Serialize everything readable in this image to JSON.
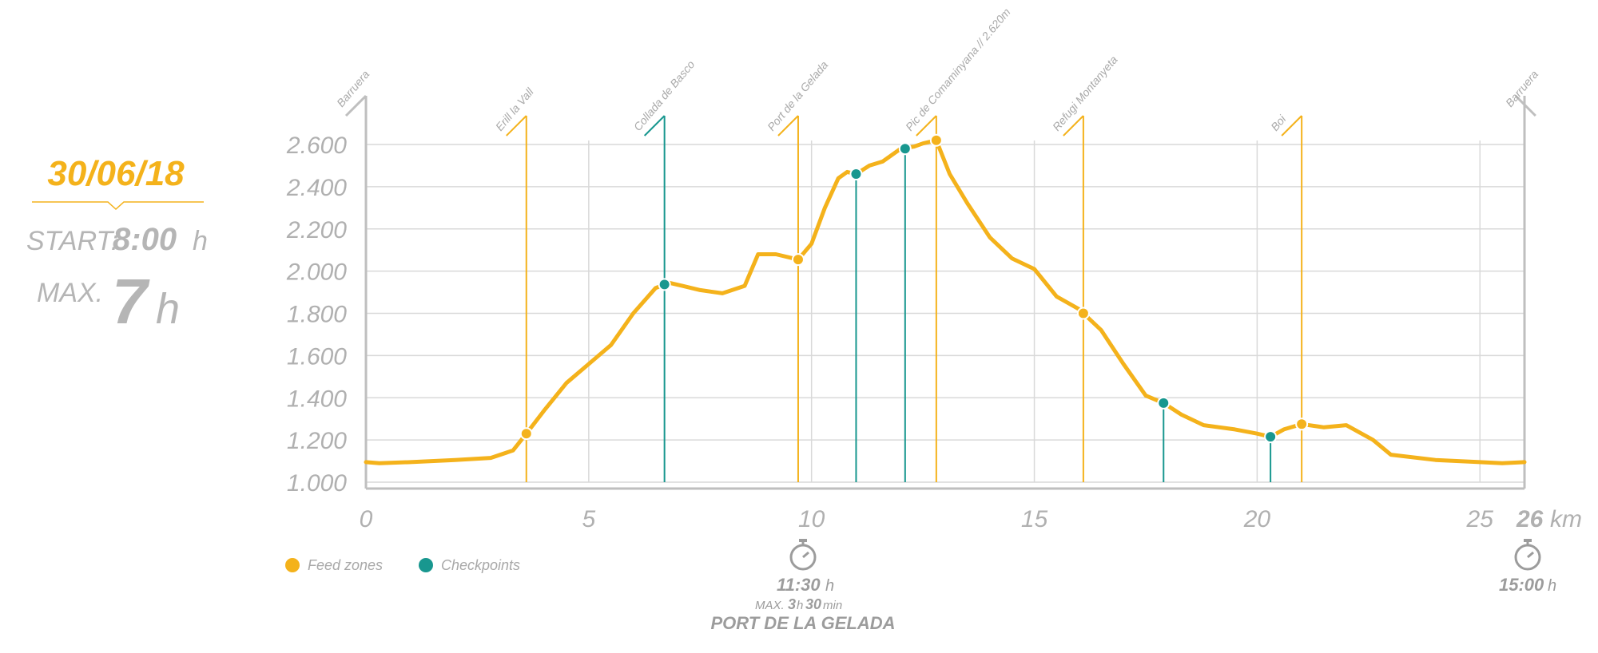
{
  "info": {
    "date": "30/06/18",
    "start_label": "START:",
    "start_value": "8:00",
    "start_unit": "h",
    "max_label": "MAX.",
    "max_value": "7",
    "max_unit": "h"
  },
  "colors": {
    "profile": "#f4b21b",
    "feed_zone": "#f4b21b",
    "checkpoint": "#18978f",
    "grid": "#d9d9d9",
    "axis": "#bfbfbf",
    "text": "#b0b0b0"
  },
  "legend": {
    "feed_zones": "Feed zones",
    "checkpoints": "Checkpoints"
  },
  "intermediate_time": {
    "time": "11:30",
    "time_unit": "h",
    "max_prefix": "MAX.",
    "max_h": "3",
    "max_h_unit": "h",
    "max_min": "30",
    "max_min_unit": "min",
    "place": "PORT DE LA GELADA"
  },
  "finish_time": {
    "time": "15:00",
    "time_unit": "h"
  },
  "chart_data": {
    "type": "area",
    "xlabel": "",
    "ylabel": "",
    "xlim": [
      0,
      26
    ],
    "ylim": [
      1000,
      2600
    ],
    "x_ticks": [
      "0",
      "5",
      "10",
      "15",
      "20",
      "25"
    ],
    "x_end_label": "26",
    "x_end_unit": "km",
    "y_ticks": [
      "1.000",
      "1.200",
      "1.400",
      "1.600",
      "1.800",
      "2.000",
      "2.200",
      "2.400",
      "2.600"
    ],
    "grid": true,
    "series": [
      {
        "x": [
          0,
          0.3,
          1,
          2,
          2.8,
          3.3,
          3.6,
          4.0,
          4.5,
          5.0,
          5.5,
          6.0,
          6.5,
          6.8,
          7.1,
          7.5,
          8.0,
          8.5,
          8.8,
          9.2,
          9.6,
          9.7,
          10.0,
          10.3,
          10.6,
          10.8,
          11.0,
          11.3,
          11.6,
          12.0,
          12.3,
          12.5,
          12.8,
          13.1,
          13.5,
          14.0,
          14.5,
          15.0,
          15.5,
          16.0,
          16.5,
          17.0,
          17.5,
          17.9,
          18.3,
          18.8,
          19.5,
          20.0,
          20.3,
          20.6,
          21.0,
          21.5,
          22.0,
          22.6,
          23.0,
          24.0,
          25.0,
          25.5,
          26.0
        ],
        "y": [
          1095,
          1090,
          1095,
          1105,
          1115,
          1150,
          1230,
          1340,
          1470,
          1560,
          1650,
          1800,
          1920,
          1945,
          1930,
          1910,
          1895,
          1930,
          2080,
          2080,
          2060,
          2055,
          2130,
          2300,
          2440,
          2470,
          2460,
          2500,
          2520,
          2580,
          2590,
          2605,
          2620,
          2460,
          2320,
          2160,
          2060,
          2010,
          1880,
          1820,
          1720,
          1560,
          1410,
          1375,
          1320,
          1270,
          1250,
          1230,
          1215,
          1250,
          1275,
          1260,
          1270,
          1200,
          1130,
          1105,
          1095,
          1090,
          1095
        ]
      }
    ],
    "stations": [
      {
        "name": "Barruera",
        "km": 0,
        "type": "endpoint"
      },
      {
        "name": "Erill la Vall",
        "km": 3.6,
        "type": "feed"
      },
      {
        "name": "Collada de Basco",
        "km": 6.7,
        "type": "checkpoint"
      },
      {
        "name": "Port de la Gelada",
        "km": 9.7,
        "type": "feed"
      },
      {
        "name": "Pic de Comaminyana // 2.620m",
        "km": 12.8,
        "type": "feed"
      },
      {
        "name": "Refugi Montanyeta",
        "km": 16.1,
        "type": "feed"
      },
      {
        "name": "Boi",
        "km": 21.0,
        "type": "feed"
      },
      {
        "name": "Barruera",
        "km": 25.8,
        "type": "endpoint"
      }
    ],
    "extra_checkpoints": [
      {
        "km": 11.0,
        "alt": 2460
      },
      {
        "km": 12.1,
        "alt": 2580
      },
      {
        "km": 17.9,
        "alt": 1375
      },
      {
        "km": 20.3,
        "alt": 1215
      }
    ]
  }
}
